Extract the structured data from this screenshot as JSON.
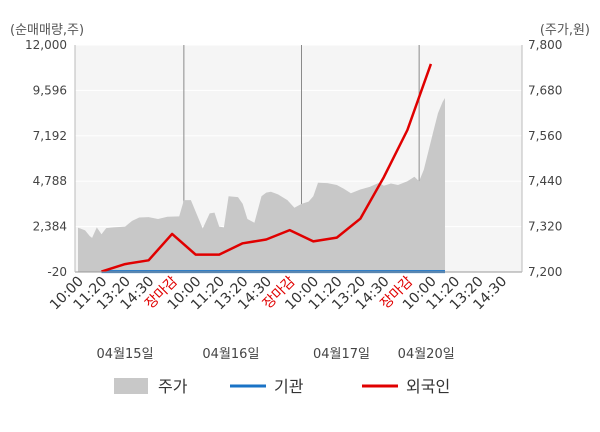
{
  "chart_data": {
    "type": "area",
    "left_axis_label": "(순매매량,주)",
    "right_axis_label": "(주가,원)",
    "left_ticks": [
      "12,000",
      "9,596",
      "7,192",
      "4,788",
      "2,384",
      "-20"
    ],
    "left_tick_values": [
      12000,
      9596,
      7192,
      4788,
      2384,
      -20
    ],
    "ylim_left": [
      -20,
      12000
    ],
    "right_ticks": [
      "7,800",
      "7,680",
      "7,560",
      "7,440",
      "7,320",
      "7,200"
    ],
    "right_tick_values": [
      7800,
      7680,
      7560,
      7440,
      7320,
      7200
    ],
    "ylim_right": [
      7200,
      7800
    ],
    "x_tick_labels": [
      {
        "slot": 0,
        "label": "10:00",
        "color": "#333333"
      },
      {
        "slot": 1,
        "label": "11:20",
        "color": "#333333"
      },
      {
        "slot": 2,
        "label": "13:20",
        "color": "#333333"
      },
      {
        "slot": 3,
        "label": "14:30",
        "color": "#333333"
      },
      {
        "slot": 4,
        "label": "장마감",
        "color": "#e00000"
      },
      {
        "slot": 5,
        "label": "10:00",
        "color": "#333333"
      },
      {
        "slot": 6,
        "label": "11:20",
        "color": "#333333"
      },
      {
        "slot": 7,
        "label": "13:20",
        "color": "#333333"
      },
      {
        "slot": 8,
        "label": "14:30",
        "color": "#333333"
      },
      {
        "slot": 9,
        "label": "장마감",
        "color": "#e00000"
      },
      {
        "slot": 10,
        "label": "10:00",
        "color": "#333333"
      },
      {
        "slot": 11,
        "label": "11:20",
        "color": "#333333"
      },
      {
        "slot": 12,
        "label": "13:20",
        "color": "#333333"
      },
      {
        "slot": 13,
        "label": "14:30",
        "color": "#333333"
      },
      {
        "slot": 14,
        "label": "장마감",
        "color": "#e00000"
      },
      {
        "slot": 15,
        "label": "10:00",
        "color": "#333333"
      },
      {
        "slot": 16,
        "label": "11:20",
        "color": "#333333"
      },
      {
        "slot": 17,
        "label": "13:20",
        "color": "#333333"
      },
      {
        "slot": 18,
        "label": "14:30",
        "color": "#333333"
      }
    ],
    "dates": [
      {
        "slot": 2.0,
        "label": "04월15일"
      },
      {
        "slot": 6.5,
        "label": "04월16일"
      },
      {
        "slot": 11.2,
        "label": "04월17일"
      },
      {
        "slot": 14.8,
        "label": "04월20일"
      }
    ],
    "day_dividers": [
      4.5,
      9.5,
      14.5
    ],
    "series": [
      {
        "name": "주가",
        "color": "#c8c8c8",
        "axis": "right",
        "kind": "area",
        "points": [
          [
            0,
            7317
          ],
          [
            0.1,
            7315
          ],
          [
            0.3,
            7310
          ],
          [
            0.5,
            7295
          ],
          [
            0.6,
            7290
          ],
          [
            0.8,
            7318
          ],
          [
            1.0,
            7300
          ],
          [
            1.2,
            7316
          ],
          [
            1.5,
            7318
          ],
          [
            2.0,
            7320
          ],
          [
            2.3,
            7335
          ],
          [
            2.6,
            7344
          ],
          [
            3.0,
            7345
          ],
          [
            3.4,
            7340
          ],
          [
            3.8,
            7346
          ],
          [
            4.3,
            7347
          ],
          [
            4.5,
            7390
          ],
          [
            4.8,
            7390
          ],
          [
            5.0,
            7360
          ],
          [
            5.3,
            7315
          ],
          [
            5.6,
            7355
          ],
          [
            5.8,
            7357
          ],
          [
            6.0,
            7320
          ],
          [
            6.2,
            7318
          ],
          [
            6.4,
            7400
          ],
          [
            6.8,
            7398
          ],
          [
            7.0,
            7380
          ],
          [
            7.2,
            7340
          ],
          [
            7.5,
            7330
          ],
          [
            7.8,
            7400
          ],
          [
            8.0,
            7410
          ],
          [
            8.2,
            7412
          ],
          [
            8.5,
            7405
          ],
          [
            8.9,
            7390
          ],
          [
            9.2,
            7370
          ],
          [
            9.5,
            7380
          ],
          [
            9.8,
            7386
          ],
          [
            10.0,
            7400
          ],
          [
            10.2,
            7436
          ],
          [
            10.6,
            7435
          ],
          [
            11.0,
            7430
          ],
          [
            11.3,
            7420
          ],
          [
            11.6,
            7408
          ],
          [
            12.0,
            7418
          ],
          [
            12.4,
            7425
          ],
          [
            12.8,
            7436
          ],
          [
            13.0,
            7428
          ],
          [
            13.3,
            7434
          ],
          [
            13.6,
            7430
          ],
          [
            14.0,
            7440
          ],
          [
            14.3,
            7452
          ],
          [
            14.5,
            7440
          ],
          [
            14.7,
            7470
          ],
          [
            14.9,
            7520
          ],
          [
            15.1,
            7570
          ],
          [
            15.3,
            7620
          ],
          [
            15.5,
            7650
          ],
          [
            15.6,
            7660
          ]
        ]
      },
      {
        "name": "기관",
        "color": "#1a73c6",
        "axis": "left",
        "kind": "line",
        "points": [
          [
            1.0,
            0
          ],
          [
            15.6,
            0
          ]
        ]
      },
      {
        "name": "외국인",
        "color": "#e00000",
        "axis": "left",
        "kind": "line",
        "points": [
          [
            1.0,
            0
          ],
          [
            2.0,
            400
          ],
          [
            3.0,
            600
          ],
          [
            4.0,
            2000
          ],
          [
            5.0,
            900
          ],
          [
            6.0,
            900
          ],
          [
            7.0,
            1500
          ],
          [
            8.0,
            1700
          ],
          [
            9.0,
            2200
          ],
          [
            10.0,
            1600
          ],
          [
            11.0,
            1800
          ],
          [
            12.0,
            2800
          ],
          [
            13.0,
            5000
          ],
          [
            14.0,
            7500
          ],
          [
            15.0,
            11000
          ]
        ]
      }
    ],
    "grid": true,
    "legend_position": "bottom"
  },
  "legend": [
    {
      "label": "주가",
      "color": "#c8c8c8",
      "kind": "box"
    },
    {
      "label": "기관",
      "color": "#1a73c6",
      "kind": "line"
    },
    {
      "label": "외국인",
      "color": "#e00000",
      "kind": "line"
    }
  ]
}
